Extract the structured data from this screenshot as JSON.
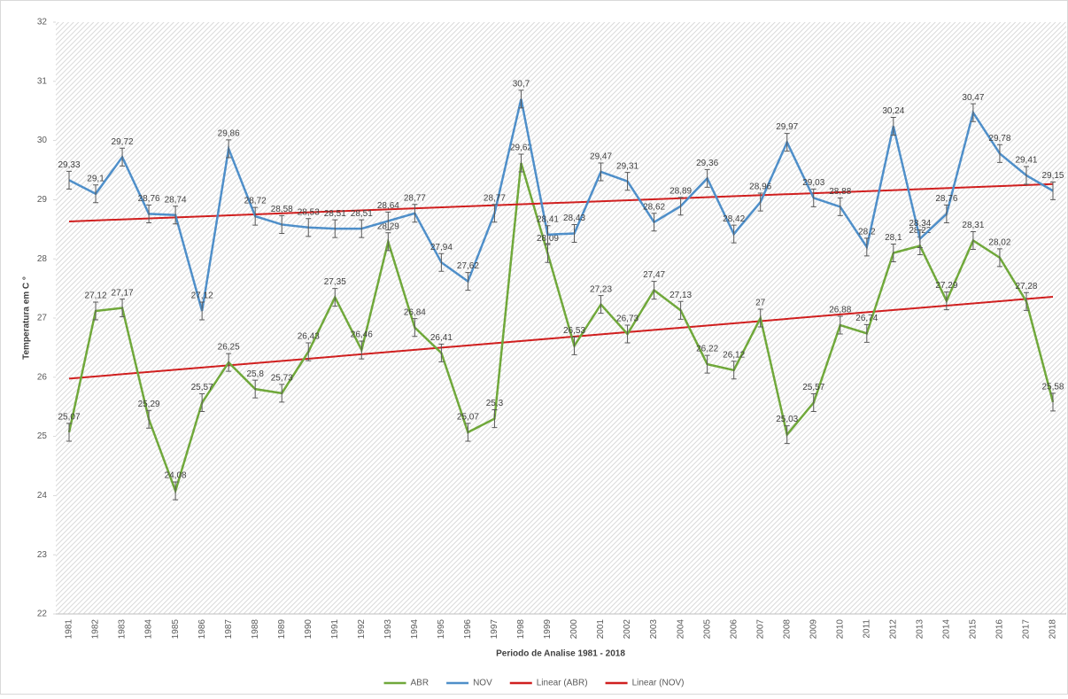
{
  "chart_data": {
    "type": "line",
    "y_label": "Temperatura em C °",
    "x_label": "Periodo de Analise 1981 - 2018",
    "categories": [
      "1981",
      "1982",
      "1983",
      "1984",
      "1985",
      "1986",
      "1987",
      "1988",
      "1989",
      "1990",
      "1991",
      "1992",
      "1993",
      "1994",
      "1995",
      "1996",
      "1997",
      "1998",
      "1999",
      "2000",
      "2001",
      "2002",
      "2003",
      "2004",
      "2005",
      "2006",
      "2007",
      "2008",
      "2009",
      "2010",
      "2011",
      "2012",
      "2013",
      "2014",
      "2015",
      "2016",
      "2017",
      "2018"
    ],
    "ylim": [
      22,
      32
    ],
    "yticks": [
      22,
      23,
      24,
      25,
      26,
      27,
      28,
      29,
      30,
      31,
      32
    ],
    "grid": false,
    "legend": "bottom",
    "series": [
      {
        "name": "ABR",
        "color": "#70a83b",
        "error": 0.15,
        "trendline": {
          "name": "Linear (ABR)",
          "color": "#d01f1f"
        },
        "values": [
          25.07,
          27.12,
          27.17,
          25.29,
          24.08,
          25.57,
          26.25,
          25.8,
          25.73,
          26.43,
          27.35,
          26.46,
          28.29,
          26.84,
          26.41,
          25.07,
          25.3,
          29.62,
          28.09,
          26.53,
          27.23,
          26.73,
          27.47,
          27.13,
          26.22,
          26.12,
          27,
          25.03,
          25.57,
          26.88,
          26.74,
          28.1,
          28.22,
          27.29,
          28.31,
          28.02,
          27.28,
          25.58
        ],
        "value_labels": [
          "25,07",
          "27,12",
          "27,17",
          "25,29",
          "24,08",
          "25,57",
          "26,25",
          "25,8",
          "25,73",
          "26,43",
          "27,35",
          "26,46",
          "28,29",
          "26,84",
          "26,41",
          "25,07",
          "25,3",
          "29,62",
          "28,09",
          "26,53",
          "27,23",
          "26,73",
          "27,47",
          "27,13",
          "26,22",
          "26,12",
          "27",
          "25,03",
          "25,57",
          "26,88",
          "26,74",
          "28,1",
          "28,22",
          "27,29",
          "28,31",
          "28,02",
          "27,28",
          "25,58"
        ]
      },
      {
        "name": "NOV",
        "color": "#4f8fc9",
        "error": 0.15,
        "trendline": {
          "name": "Linear (NOV)",
          "color": "#d01f1f"
        },
        "values": [
          29.33,
          29.1,
          29.72,
          28.76,
          28.74,
          27.12,
          29.86,
          28.72,
          28.58,
          28.53,
          28.51,
          28.51,
          28.64,
          28.77,
          27.94,
          27.62,
          28.77,
          30.7,
          28.41,
          28.43,
          29.47,
          29.31,
          28.62,
          28.89,
          29.36,
          28.42,
          28.96,
          29.97,
          29.03,
          28.88,
          28.2,
          30.24,
          28.34,
          28.76,
          30.47,
          29.78,
          29.41,
          29.15
        ],
        "value_labels": [
          "29,33",
          "29,1",
          "29,72",
          "28,76",
          "28,74",
          "27,12",
          "29,86",
          "28,72",
          "28,58",
          "28,53",
          "28,51",
          "28,51",
          "28,64",
          "28,77",
          "27,94",
          "27,62",
          "28,77",
          "30,7",
          "28,41",
          "28,43",
          "29,47",
          "29,31",
          "28,62",
          "28,89",
          "29,36",
          "28,42",
          "28,96",
          "29,97",
          "29,03",
          "28,88",
          "28,2",
          "30,24",
          "28,34",
          "28,76",
          "30,47",
          "29,78",
          "29,41",
          "29,15"
        ]
      }
    ]
  }
}
